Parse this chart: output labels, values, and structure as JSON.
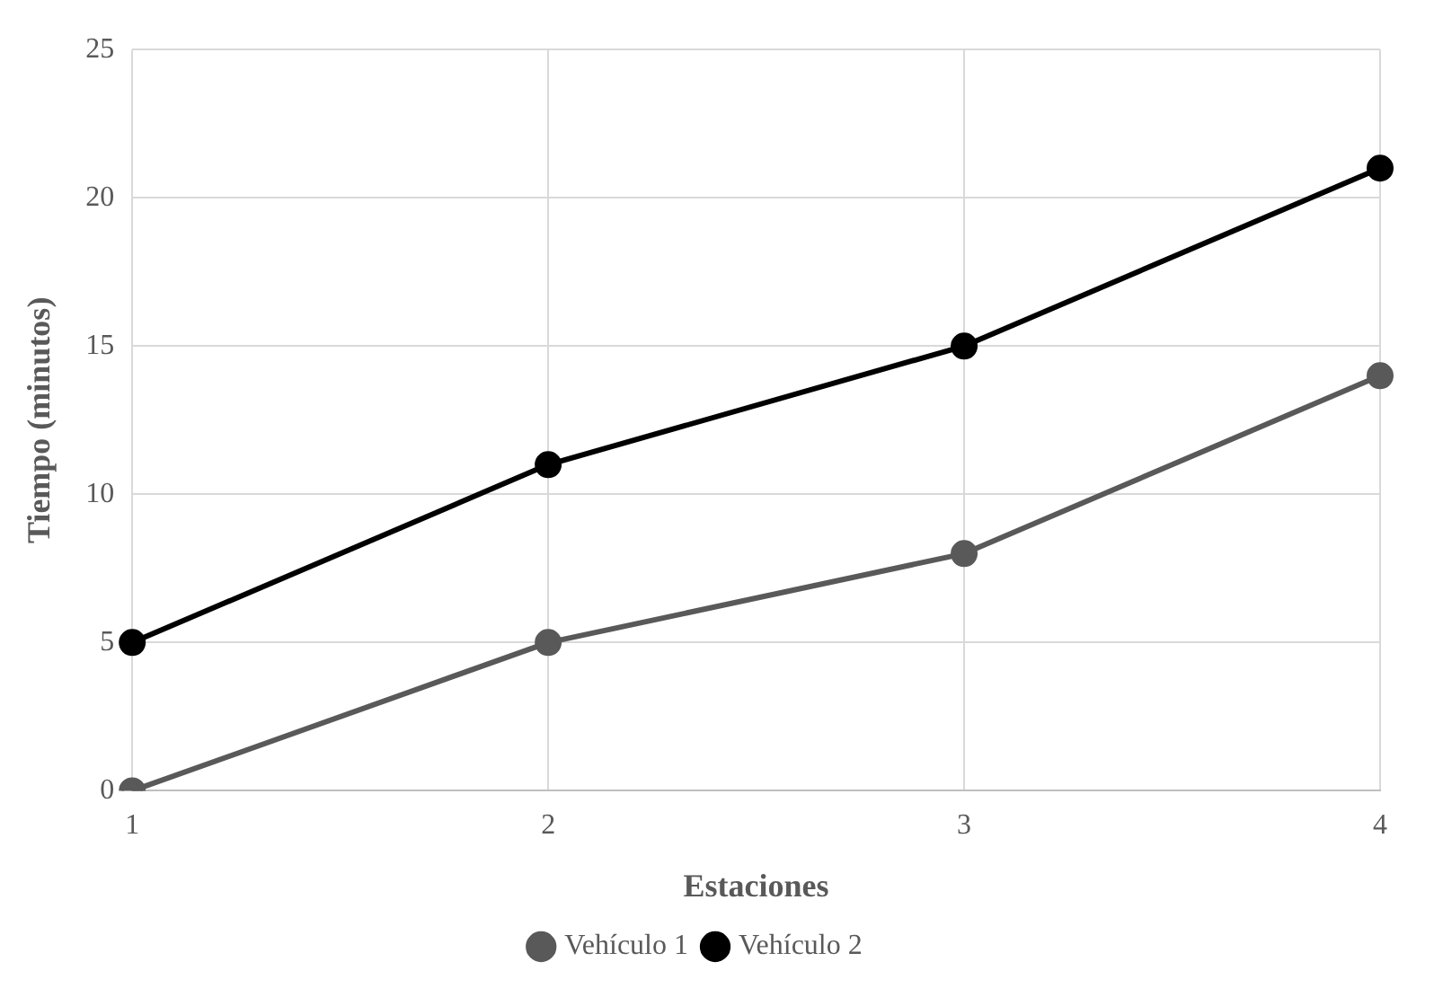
{
  "chart_data": {
    "type": "line",
    "xlabel": "Estaciones",
    "ylabel": "Tiempo (minutos)",
    "categories": [
      "1",
      "2",
      "3",
      "4"
    ],
    "series": [
      {
        "name": "Vehículo 1",
        "color": "#595959",
        "values": [
          0,
          5,
          8,
          14
        ]
      },
      {
        "name": "Vehículo 2",
        "color": "#000000",
        "values": [
          5,
          11,
          15,
          21
        ]
      }
    ],
    "ylim": [
      0,
      25
    ],
    "yticks": [
      0,
      5,
      10,
      15,
      20,
      25
    ],
    "grid": true,
    "legend": "bottom",
    "marker": "circle",
    "line_style": "solid"
  }
}
